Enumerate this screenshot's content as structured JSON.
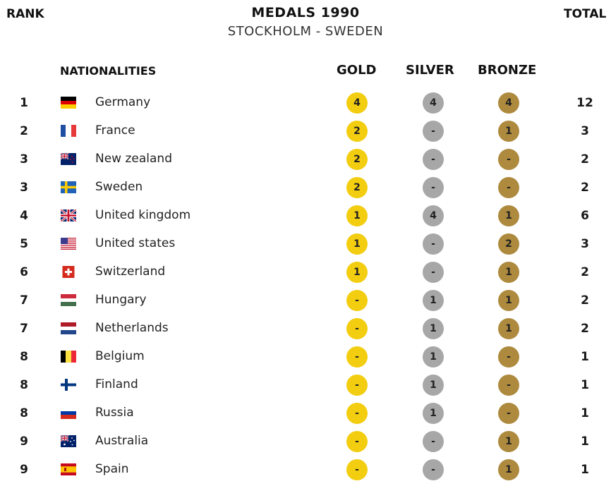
{
  "header": {
    "title": "MEDALS 1990",
    "subtitle": "STOCKHOLM - SWEDEN"
  },
  "columns": {
    "rank": "RANK",
    "nationalities": "NATIONALITIES",
    "gold": "GOLD",
    "silver": "SILVER",
    "bronze": "BRONZE",
    "total": "TOTAL"
  },
  "colors": {
    "gold": "#f2cd10",
    "silver": "#a7a7a7",
    "bronze": "#ad8a3e"
  },
  "rows": [
    {
      "rank": "1",
      "flag": "germany-flag-icon",
      "nation": "Germany",
      "gold": "4",
      "silver": "4",
      "bronze": "4",
      "total": "12"
    },
    {
      "rank": "2",
      "flag": "france-flag-icon",
      "nation": "France",
      "gold": "2",
      "silver": "-",
      "bronze": "1",
      "total": "3"
    },
    {
      "rank": "3",
      "flag": "new-zealand-flag-icon",
      "nation": "New zealand",
      "gold": "2",
      "silver": "-",
      "bronze": "-",
      "total": "2"
    },
    {
      "rank": "3",
      "flag": "sweden-flag-icon",
      "nation": "Sweden",
      "gold": "2",
      "silver": "-",
      "bronze": "-",
      "total": "2"
    },
    {
      "rank": "4",
      "flag": "united-kingdom-flag-icon",
      "nation": "United kingdom",
      "gold": "1",
      "silver": "4",
      "bronze": "1",
      "total": "6"
    },
    {
      "rank": "5",
      "flag": "united-states-flag-icon",
      "nation": "United states",
      "gold": "1",
      "silver": "-",
      "bronze": "2",
      "total": "3"
    },
    {
      "rank": "6",
      "flag": "switzerland-flag-icon",
      "nation": "Switzerland",
      "gold": "1",
      "silver": "-",
      "bronze": "1",
      "total": "2"
    },
    {
      "rank": "7",
      "flag": "hungary-flag-icon",
      "nation": "Hungary",
      "gold": "-",
      "silver": "1",
      "bronze": "1",
      "total": "2"
    },
    {
      "rank": "7",
      "flag": "netherlands-flag-icon",
      "nation": "Netherlands",
      "gold": "-",
      "silver": "1",
      "bronze": "1",
      "total": "2"
    },
    {
      "rank": "8",
      "flag": "belgium-flag-icon",
      "nation": "Belgium",
      "gold": "-",
      "silver": "1",
      "bronze": "-",
      "total": "1"
    },
    {
      "rank": "8",
      "flag": "finland-flag-icon",
      "nation": "Finland",
      "gold": "-",
      "silver": "1",
      "bronze": "-",
      "total": "1"
    },
    {
      "rank": "8",
      "flag": "russia-flag-icon",
      "nation": "Russia",
      "gold": "-",
      "silver": "1",
      "bronze": "-",
      "total": "1"
    },
    {
      "rank": "9",
      "flag": "australia-flag-icon",
      "nation": "Australia",
      "gold": "-",
      "silver": "-",
      "bronze": "1",
      "total": "1"
    },
    {
      "rank": "9",
      "flag": "spain-flag-icon",
      "nation": "Spain",
      "gold": "-",
      "silver": "-",
      "bronze": "1",
      "total": "1"
    }
  ]
}
